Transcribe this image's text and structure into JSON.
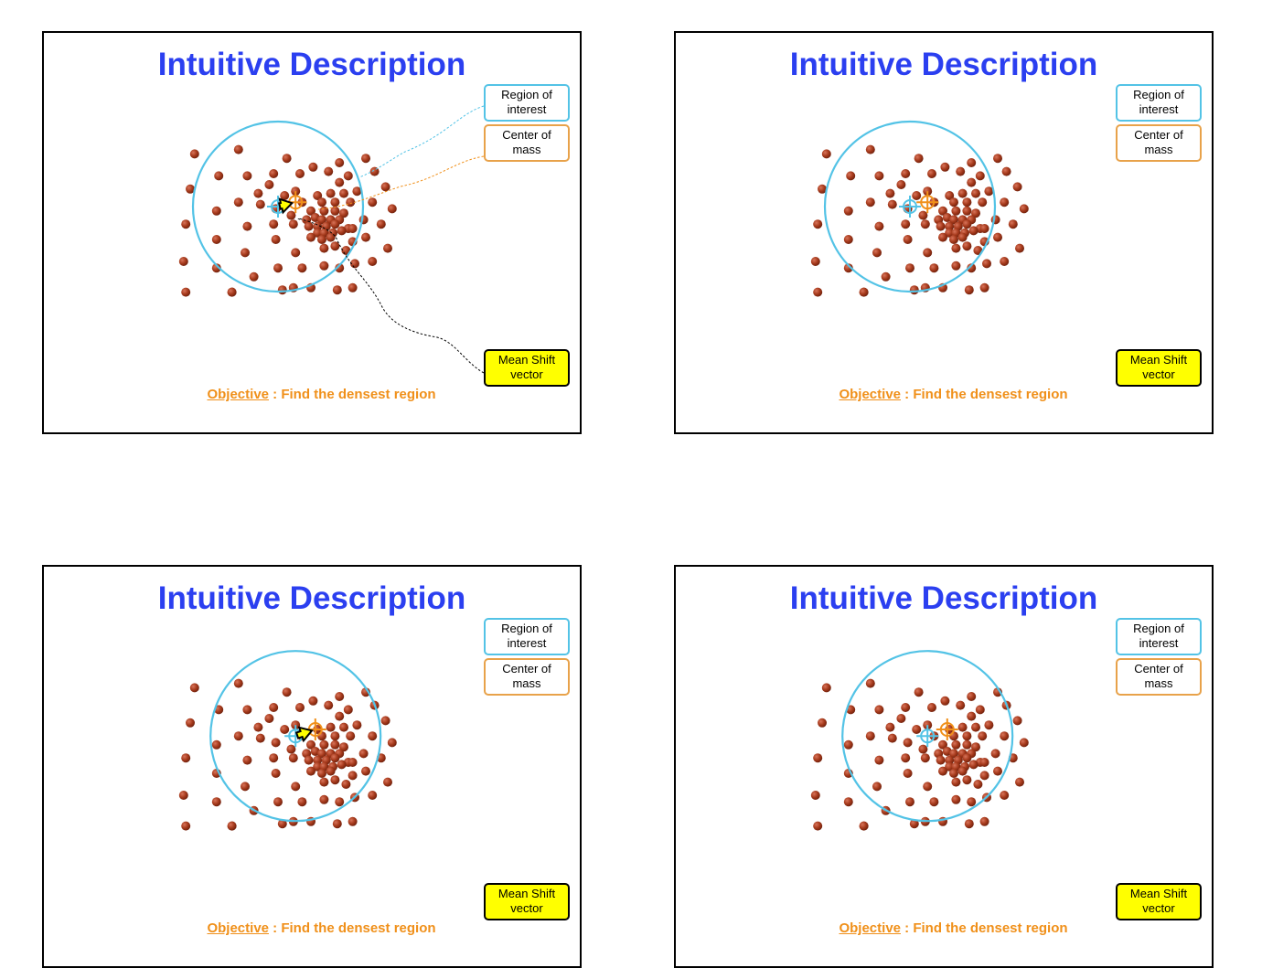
{
  "colors": {
    "title": "#2b3ff0",
    "point": "#a63a1c",
    "region": "#53c3e6",
    "center": "#f0901a",
    "vector_fill": "#ffff00",
    "objective": "#f0901a"
  },
  "slides": [
    {
      "title": "Intuitive Description",
      "legend": {
        "region": "Region of interest",
        "center": "Center of mass",
        "mean_shift": "Mean Shift vector"
      },
      "objective": {
        "label": "Objective",
        "separator": " : ",
        "text": "Find the densest region"
      },
      "window_center": [
        0.0,
        0.0
      ],
      "mass_center": [
        0.4,
        -0.1
      ],
      "show_vector": true,
      "show_leaders": true
    },
    {
      "title": "Intuitive Description",
      "legend": {
        "region": "Region of interest",
        "center": "Center of mass",
        "mean_shift": "Mean Shift vector"
      },
      "objective": {
        "label": "Objective",
        "separator": " : ",
        "text": "Find the densest region"
      },
      "window_center": [
        0.0,
        0.0
      ],
      "mass_center": [
        0.4,
        -0.1
      ],
      "show_vector": false,
      "show_leaders": false
    },
    {
      "title": "Intuitive Description",
      "legend": {
        "region": "Region of interest",
        "center": "Center of mass",
        "mean_shift": "Mean Shift vector"
      },
      "objective": {
        "label": "Objective",
        "separator": " : ",
        "text": "Find the densest region"
      },
      "window_center": [
        0.4,
        -0.1
      ],
      "mass_center": [
        0.85,
        -0.25
      ],
      "show_vector": true,
      "show_leaders": false
    },
    {
      "title": "Intuitive Description",
      "legend": {
        "region": "Region of interest",
        "center": "Center of mass",
        "mean_shift": "Mean Shift vector"
      },
      "objective": {
        "label": "Objective",
        "separator": " : ",
        "text": "Find the densest region"
      },
      "window_center": [
        0.4,
        -0.1
      ],
      "mass_center": [
        0.85,
        -0.25
      ],
      "show_vector": false,
      "show_leaders": false
    }
  ],
  "points": [
    [
      -1.9,
      -1.2
    ],
    [
      -0.9,
      -1.3
    ],
    [
      0.2,
      -1.1
    ],
    [
      0.8,
      -0.9
    ],
    [
      1.4,
      -1.0
    ],
    [
      2.0,
      -1.1
    ],
    [
      -1.35,
      -0.7
    ],
    [
      -0.7,
      -0.7
    ],
    [
      -0.1,
      -0.75
    ],
    [
      0.5,
      -0.75
    ],
    [
      1.15,
      -0.8
    ],
    [
      1.6,
      -0.7
    ],
    [
      2.2,
      -0.8
    ],
    [
      -2.0,
      -0.4
    ],
    [
      -0.2,
      -0.5
    ],
    [
      0.4,
      -0.35
    ],
    [
      1.4,
      -0.55
    ],
    [
      2.45,
      -0.45
    ],
    [
      -0.45,
      -0.3
    ],
    [
      0.15,
      -0.25
    ],
    [
      0.9,
      -0.25
    ],
    [
      1.2,
      -0.3
    ],
    [
      1.5,
      -0.3
    ],
    [
      1.8,
      -0.35
    ],
    [
      -0.9,
      -0.1
    ],
    [
      -0.4,
      -0.05
    ],
    [
      0.55,
      -0.1
    ],
    [
      1.0,
      -0.1
    ],
    [
      1.3,
      -0.1
    ],
    [
      1.65,
      -0.1
    ],
    [
      2.15,
      -0.1
    ],
    [
      -1.4,
      0.1
    ],
    [
      -0.05,
      0.05
    ],
    [
      0.75,
      0.1
    ],
    [
      1.05,
      0.1
    ],
    [
      1.3,
      0.1
    ],
    [
      1.5,
      0.15
    ],
    [
      2.6,
      0.05
    ],
    [
      0.3,
      0.2
    ],
    [
      0.65,
      0.3
    ],
    [
      0.85,
      0.25
    ],
    [
      1.0,
      0.3
    ],
    [
      1.2,
      0.3
    ],
    [
      1.4,
      0.3
    ],
    [
      1.95,
      0.3
    ],
    [
      -2.1,
      0.4
    ],
    [
      -0.7,
      0.45
    ],
    [
      -0.1,
      0.4
    ],
    [
      0.35,
      0.4
    ],
    [
      0.7,
      0.45
    ],
    [
      0.9,
      0.45
    ],
    [
      1.1,
      0.45
    ],
    [
      1.3,
      0.4
    ],
    [
      1.6,
      0.5
    ],
    [
      2.35,
      0.4
    ],
    [
      0.9,
      0.6
    ],
    [
      1.05,
      0.6
    ],
    [
      1.25,
      0.6
    ],
    [
      1.45,
      0.55
    ],
    [
      1.7,
      0.5
    ],
    [
      -1.4,
      0.75
    ],
    [
      -0.05,
      0.75
    ],
    [
      0.75,
      0.7
    ],
    [
      1.0,
      0.75
    ],
    [
      1.2,
      0.7
    ],
    [
      2.0,
      0.7
    ],
    [
      -0.75,
      1.05
    ],
    [
      0.4,
      1.05
    ],
    [
      1.05,
      0.95
    ],
    [
      1.3,
      0.9
    ],
    [
      1.55,
      1.0
    ],
    [
      1.7,
      0.8
    ],
    [
      2.5,
      0.95
    ],
    [
      -2.15,
      1.25
    ],
    [
      -1.4,
      1.4
    ],
    [
      0.0,
      1.4
    ],
    [
      0.55,
      1.4
    ],
    [
      1.05,
      1.35
    ],
    [
      1.4,
      1.4
    ],
    [
      1.75,
      1.3
    ],
    [
      2.15,
      1.25
    ],
    [
      -0.55,
      1.6
    ],
    [
      0.35,
      1.85
    ],
    [
      0.1,
      1.9
    ],
    [
      -1.05,
      1.95
    ],
    [
      0.75,
      1.85
    ],
    [
      1.35,
      1.9
    ],
    [
      1.7,
      1.85
    ],
    [
      -2.1,
      1.95
    ],
    [
      -1.05,
      1.95
    ]
  ]
}
